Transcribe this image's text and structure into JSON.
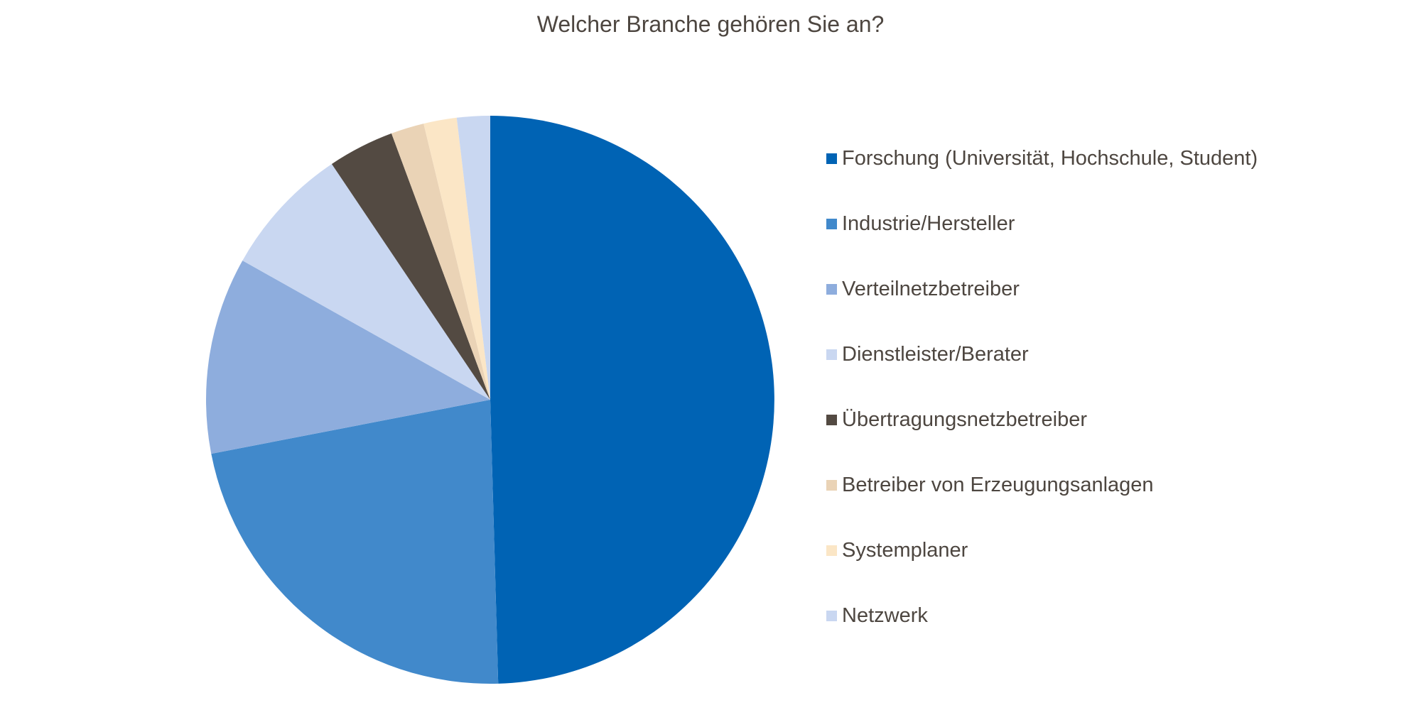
{
  "chart_data": {
    "type": "pie",
    "title": "Welcher Branche gehören Sie an?",
    "legend_position": "right",
    "start_angle_deg": 0,
    "direction": "clockwise",
    "slices": [
      {
        "label": "Forschung (Universität, Hochschule, Student)",
        "value": 50,
        "color": "#0063b4"
      },
      {
        "label": "Industrie/Hersteller",
        "value": 22.6,
        "color": "#4189cb"
      },
      {
        "label": "Verteilnetzbetreiber",
        "value": 11.3,
        "color": "#8eaddd"
      },
      {
        "label": "Dienstleister/Berater",
        "value": 7.5,
        "color": "#c9d7f1"
      },
      {
        "label": "Übertragungsnetzbetreiber",
        "value": 3.8,
        "color": "#534a42"
      },
      {
        "label": "Betreiber von Erzeugungsanlagen",
        "value": 1.9,
        "color": "#ead3b6"
      },
      {
        "label": "Systemplaner",
        "value": 1.9,
        "color": "#fbe6c6"
      },
      {
        "label": "Netzwerk",
        "value": 1.9,
        "color": "#c9d7f1"
      }
    ]
  }
}
